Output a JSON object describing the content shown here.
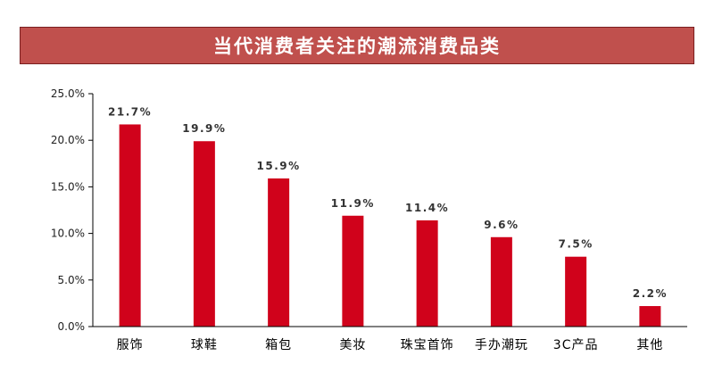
{
  "colors": {
    "title_bg": "#c0504d",
    "bar": "#d0021b",
    "axis": "#000000"
  },
  "chart_data": {
    "type": "bar",
    "title": "当代消费者关注的潮流消费品类",
    "categories": [
      "服饰",
      "球鞋",
      "箱包",
      "美妆",
      "珠宝首饰",
      "手办潮玩",
      "3C产品",
      "其他"
    ],
    "values": [
      21.7,
      19.9,
      15.9,
      11.9,
      11.4,
      9.6,
      7.5,
      2.2
    ],
    "data_labels": [
      "21.7%",
      "19.9%",
      "15.9%",
      "11.9%",
      "11.4%",
      "9.6%",
      "7.5%",
      "2.2%"
    ],
    "ylim": [
      0,
      25
    ],
    "yticks": [
      0,
      5,
      10,
      15,
      20,
      25
    ],
    "ytick_labels": [
      "0.0%",
      "5.0%",
      "10.0%",
      "15.0%",
      "20.0%",
      "25.0%"
    ],
    "xlabel": "",
    "ylabel": "",
    "grid": false,
    "legend": "none"
  }
}
